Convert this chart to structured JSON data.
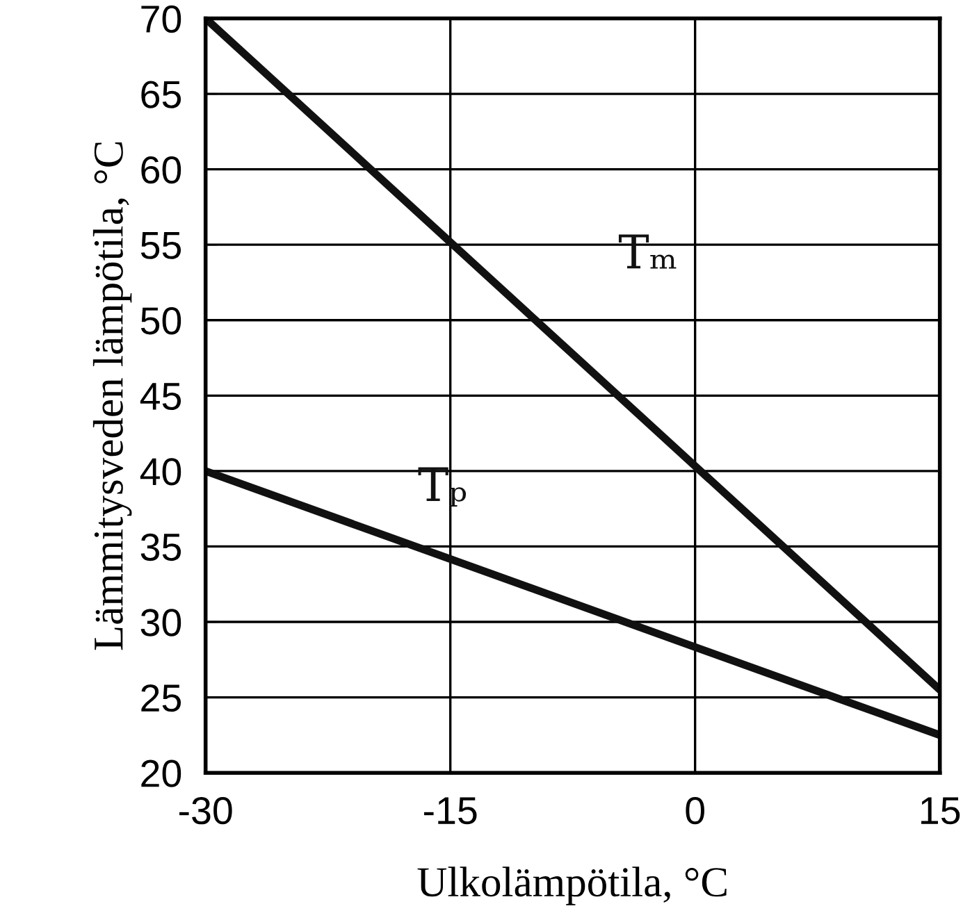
{
  "chart_data": {
    "type": "line",
    "xlabel": "Ulkolämpötila, °C",
    "ylabel": "Lämmitysveden lämpötila, °C",
    "x": [
      -30,
      15
    ],
    "series": [
      {
        "name": "Tₘ",
        "color": "#111111",
        "values": [
          70,
          25.5
        ]
      },
      {
        "name": "Tₚ",
        "color": "#111111",
        "values": [
          40,
          22.5
        ]
      }
    ],
    "xlim": [
      -30,
      15
    ],
    "xticks": [
      -30,
      -15,
      0,
      15
    ],
    "ylim": [
      20,
      70
    ],
    "yticks": [
      20,
      25,
      30,
      35,
      40,
      45,
      50,
      55,
      60,
      65,
      70
    ],
    "grid": true,
    "legend": false,
    "marker": "none",
    "line_style": "solid"
  }
}
